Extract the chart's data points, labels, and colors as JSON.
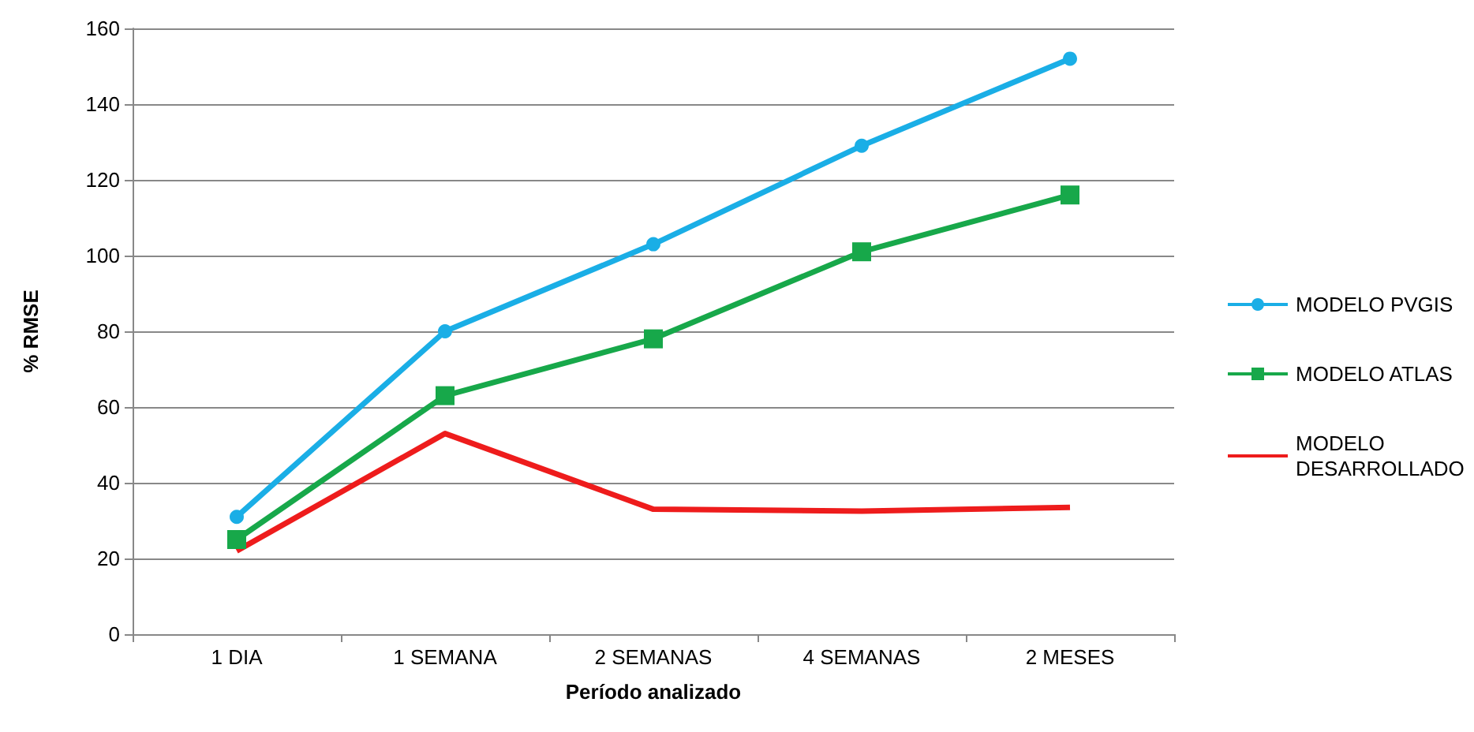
{
  "chart_data": {
    "type": "line",
    "xlabel": "Período analizado",
    "ylabel": "% RMSE",
    "categories": [
      "1 DIA",
      "1 SEMANA",
      "2 SEMANAS",
      "4 SEMANAS",
      "2 MESES"
    ],
    "series": [
      {
        "name": "MODELO PVGIS",
        "color": "#1aaee6",
        "marker": "circle",
        "values": [
          31,
          80,
          103,
          129,
          152
        ]
      },
      {
        "name": "MODELO ATLAS",
        "color": "#17a84a",
        "marker": "square",
        "values": [
          25,
          63,
          78,
          101,
          116
        ]
      },
      {
        "name": "MODELO\nDESARROLLADO",
        "color": "#ee1c1c",
        "marker": "none",
        "values": [
          22,
          53,
          33,
          32.5,
          33.5
        ]
      }
    ],
    "ylim": [
      0,
      160
    ],
    "yticks": [
      0,
      20,
      40,
      60,
      80,
      100,
      120,
      140,
      160
    ],
    "grid": "y",
    "legend": "right"
  }
}
